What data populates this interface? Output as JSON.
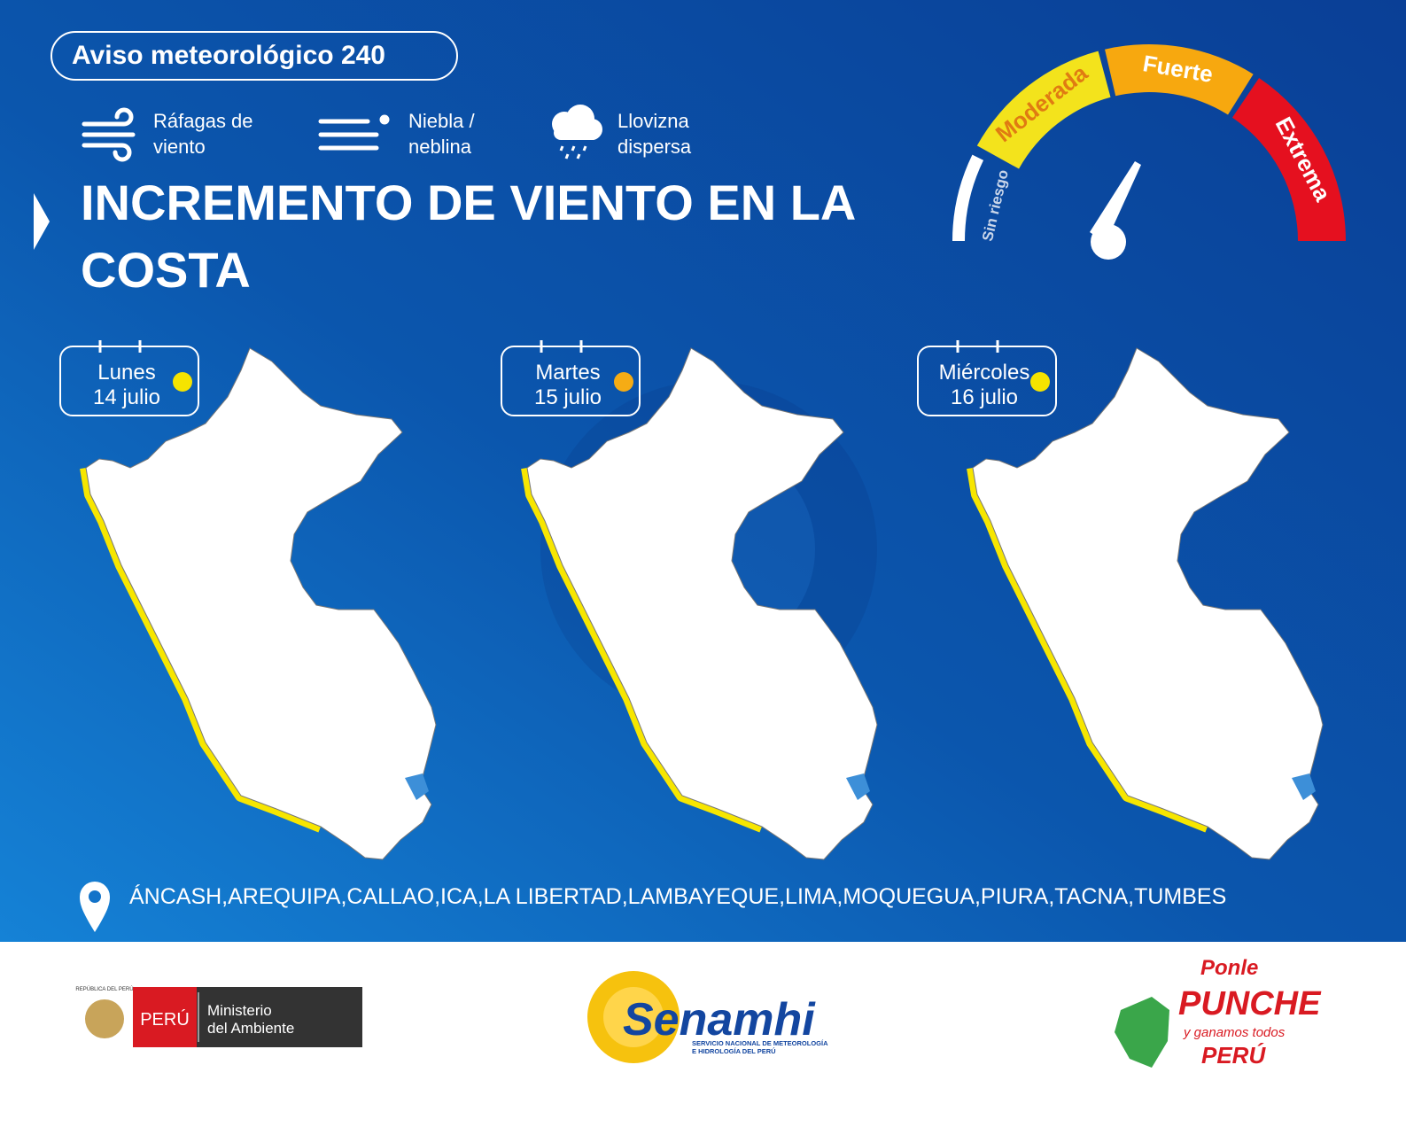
{
  "header": {
    "title": "Aviso meteorológico 240"
  },
  "hazards": [
    {
      "lines": [
        "Ráfagas de",
        "viento"
      ]
    },
    {
      "lines": [
        "Niebla /",
        "neblina"
      ]
    },
    {
      "lines": [
        "Llovizna",
        "dispersa"
      ]
    }
  ],
  "headline": "INCREMENTO DE VIENTO EN LA COSTA",
  "gauge": {
    "levels": [
      {
        "label": "Sin riesgo",
        "color": "#ffffff"
      },
      {
        "label": "Moderada",
        "color": "#f3e31c"
      },
      {
        "label": "Fuerte",
        "color": "#f7a80f"
      },
      {
        "label": "Extrema",
        "color": "#e5101f"
      }
    ]
  },
  "days": [
    {
      "day": "Lunes",
      "date": "14 julio",
      "color": "#f5e400"
    },
    {
      "day": "Martes",
      "date": "15 julio",
      "color": "#f6ac14"
    },
    {
      "day": "Miércoles",
      "date": "16 julio",
      "color": "#f5e400"
    }
  ],
  "regions": "ÁNCASH,AREQUIPA,CALLAO,ICA,LA LIBERTAD,LAMBAYEQUE,LIMA,MOQUEGUA,PIURA,TACNA,TUMBES",
  "footer": {
    "minam": {
      "republic": "REPÚBLICA DEL PERÚ",
      "country": "PERÚ",
      "ministry": [
        "Ministerio",
        "del Ambiente"
      ]
    },
    "senamhi": {
      "name": "Senamhi",
      "full": [
        "SERVICIO NACIONAL DE METEOROLOGÍA",
        "E HIDROLOGÍA DEL PERÚ"
      ]
    },
    "campaign": {
      "top": "Ponle",
      "main": "PUNCHE",
      "sub": "y ganamos todos",
      "country": "PERÚ"
    }
  }
}
